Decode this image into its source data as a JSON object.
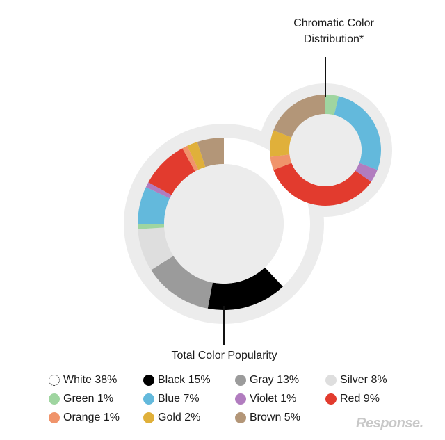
{
  "chart_data": [
    {
      "type": "pie",
      "variant": "donut",
      "title": "Total Color Popularity",
      "slices": [
        {
          "label": "White",
          "value": 38,
          "color": "#ffffff"
        },
        {
          "label": "Black",
          "value": 15,
          "color": "#000000"
        },
        {
          "label": "Gray",
          "value": 13,
          "color": "#9b9b9b"
        },
        {
          "label": "Silver",
          "value": 8,
          "color": "#dedede"
        },
        {
          "label": "Green",
          "value": 1,
          "color": "#9fd5a0"
        },
        {
          "label": "Blue",
          "value": 7,
          "color": "#63b9dc"
        },
        {
          "label": "Violet",
          "value": 1,
          "color": "#b17cbf"
        },
        {
          "label": "Red",
          "value": 9,
          "color": "#e23b2e"
        },
        {
          "label": "Orange",
          "value": 1,
          "color": "#f0946b"
        },
        {
          "label": "Gold",
          "value": 2,
          "color": "#e0b03a"
        },
        {
          "label": "Brown",
          "value": 5,
          "color": "#b39678"
        }
      ]
    },
    {
      "type": "pie",
      "variant": "donut",
      "title": "Chromatic Color Distribution*",
      "slices": [
        {
          "label": "Green",
          "value": 1,
          "color": "#9fd5a0"
        },
        {
          "label": "Blue",
          "value": 7,
          "color": "#63b9dc"
        },
        {
          "label": "Violet",
          "value": 1,
          "color": "#b17cbf"
        },
        {
          "label": "Red",
          "value": 9,
          "color": "#e23b2e"
        },
        {
          "label": "Orange",
          "value": 1,
          "color": "#f0946b"
        },
        {
          "label": "Gold",
          "value": 2,
          "color": "#e0b03a"
        },
        {
          "label": "Brown",
          "value": 5,
          "color": "#b39678"
        }
      ]
    }
  ],
  "titles": {
    "chromatic_line1": "Chromatic Color",
    "chromatic_line2": "Distribution*",
    "total": "Total Color Popularity"
  },
  "legend": [
    {
      "text": "White 38%",
      "color": "#ffffff"
    },
    {
      "text": "Black 15%",
      "color": "#000000"
    },
    {
      "text": "Gray 13%",
      "color": "#9b9b9b"
    },
    {
      "text": "Silver 8%",
      "color": "#dedede"
    },
    {
      "text": "Green 1%",
      "color": "#9fd5a0"
    },
    {
      "text": "Blue 7%",
      "color": "#63b9dc"
    },
    {
      "text": "Violet 1%",
      "color": "#b17cbf"
    },
    {
      "text": "Red 9%",
      "color": "#e23b2e"
    },
    {
      "text": "Orange 1%",
      "color": "#f0946b"
    },
    {
      "text": "Gold 2%",
      "color": "#e0b03a"
    },
    {
      "text": "Brown 5%",
      "color": "#b39678"
    }
  ],
  "watermark": "Response."
}
